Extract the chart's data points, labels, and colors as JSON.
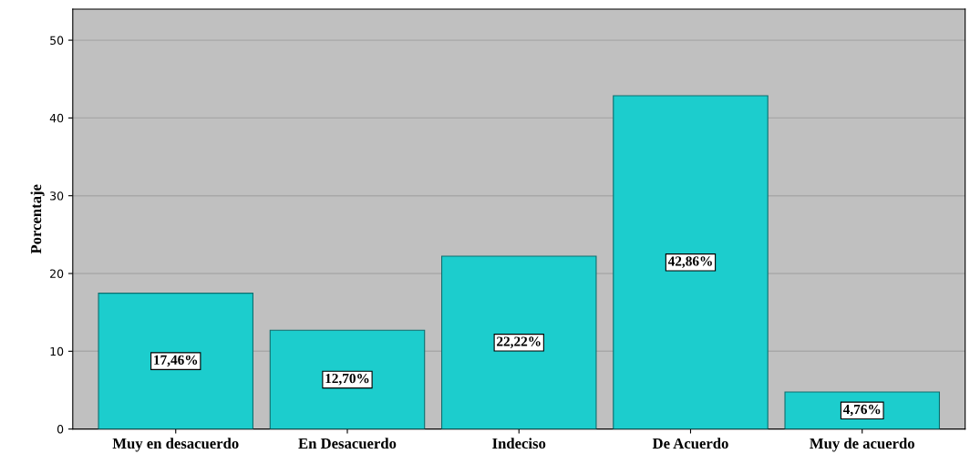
{
  "chart_data": {
    "type": "bar",
    "ylabel": "Porcentaje",
    "categories": [
      "Muy en desacuerdo",
      "En Desacuerdo",
      "Indeciso",
      "De Acuerdo",
      "Muy de acuerdo"
    ],
    "values": [
      17.46,
      12.7,
      22.22,
      42.86,
      4.76
    ],
    "value_labels": [
      "17,46%",
      "12,70%",
      "22,22%",
      "42,86%",
      "4,76%"
    ],
    "color": "#1ccdcd",
    "ylim": [
      0,
      54
    ],
    "yticks": [
      0,
      10,
      20,
      30,
      40,
      50
    ],
    "grid": "y"
  }
}
